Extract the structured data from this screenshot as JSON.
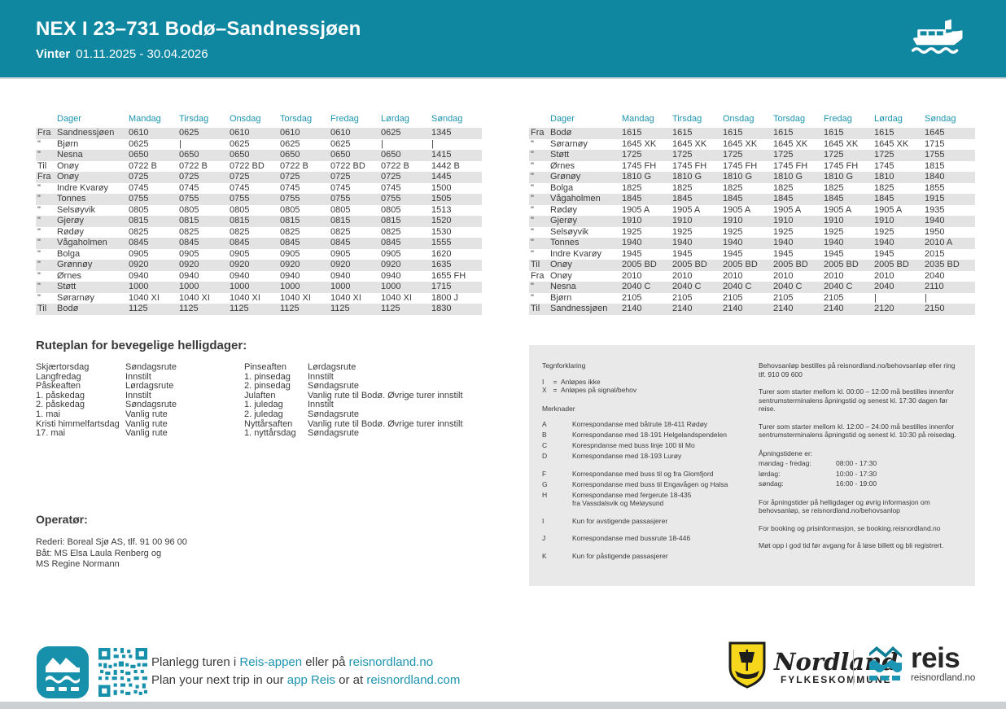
{
  "header": {
    "route_title": "NEX I 23–731 Bodø–Sandnessjøen",
    "season": "Vinter",
    "period": "01.11.2025 - 30.04.2026"
  },
  "tables": [
    {
      "columns": [
        "Dager",
        "Mandag",
        "Tirsdag",
        "Onsdag",
        "Torsdag",
        "Fredag",
        "Lørdag",
        "Søndag"
      ],
      "rows": [
        {
          "p": "Fra",
          "s": "Sandnessjøen",
          "t": [
            "0610",
            "0625",
            "0610",
            "0610",
            "0610",
            "0625",
            "1345"
          ]
        },
        {
          "p": "\"",
          "s": "Bjørn",
          "t": [
            "0625",
            "|",
            "0625",
            "0625",
            "0625",
            "|",
            "|"
          ]
        },
        {
          "p": "\"",
          "s": "Nesna",
          "t": [
            "0650",
            "0650",
            "0650",
            "0650",
            "0650",
            "0650",
            "1415"
          ]
        },
        {
          "p": "Til",
          "s": "Onøy",
          "t": [
            "0722 B",
            "0722 B",
            "0722 BD",
            "0722 B",
            "0722 BD",
            "0722 B",
            "1442 B"
          ]
        },
        {
          "p": "Fra",
          "s": "Onøy",
          "t": [
            "0725",
            "0725",
            "0725",
            "0725",
            "0725",
            "0725",
            "1445"
          ]
        },
        {
          "p": "\"",
          "s": "Indre Kvarøy",
          "t": [
            "0745",
            "0745",
            "0745",
            "0745",
            "0745",
            "0745",
            "1500"
          ]
        },
        {
          "p": "\"",
          "s": "Tonnes",
          "t": [
            "0755",
            "0755",
            "0755",
            "0755",
            "0755",
            "0755",
            "1505"
          ]
        },
        {
          "p": "\"",
          "s": "Selsøyvik",
          "t": [
            "0805",
            "0805",
            "0805",
            "0805",
            "0805",
            "0805",
            "1513"
          ]
        },
        {
          "p": "\"",
          "s": "Gjerøy",
          "t": [
            "0815",
            "0815",
            "0815",
            "0815",
            "0815",
            "0815",
            "1520"
          ]
        },
        {
          "p": "\"",
          "s": "Rødøy",
          "t": [
            "0825",
            "0825",
            "0825",
            "0825",
            "0825",
            "0825",
            "1530"
          ]
        },
        {
          "p": "\"",
          "s": "Vågaholmen",
          "t": [
            "0845",
            "0845",
            "0845",
            "0845",
            "0845",
            "0845",
            "1555"
          ]
        },
        {
          "p": "\"",
          "s": "Bolga",
          "t": [
            "0905",
            "0905",
            "0905",
            "0905",
            "0905",
            "0905",
            "1620"
          ]
        },
        {
          "p": "\"",
          "s": "Grønnøy",
          "t": [
            "0920",
            "0920",
            "0920",
            "0920",
            "0920",
            "0920",
            "1635"
          ]
        },
        {
          "p": "\"",
          "s": "Ørnes",
          "t": [
            "0940",
            "0940",
            "0940",
            "0940",
            "0940",
            "0940",
            "1655 FH"
          ]
        },
        {
          "p": "\"",
          "s": "Støtt",
          "t": [
            "1000",
            "1000",
            "1000",
            "1000",
            "1000",
            "1000",
            "1715"
          ]
        },
        {
          "p": "\"",
          "s": "Sørarnøy",
          "t": [
            "1040 XI",
            "1040 XI",
            "1040 XI",
            "1040 XI",
            "1040 XI",
            "1040 XI",
            "1800 J"
          ]
        },
        {
          "p": "Til",
          "s": "Bodø",
          "t": [
            "1125",
            "1125",
            "1125",
            "1125",
            "1125",
            "1125",
            "1830"
          ]
        }
      ]
    },
    {
      "columns": [
        "Dager",
        "Mandag",
        "Tirsdag",
        "Onsdag",
        "Torsdag",
        "Fredag",
        "Lørdag",
        "Søndag"
      ],
      "rows": [
        {
          "p": "Fra",
          "s": "Bodø",
          "t": [
            "1615",
            "1615",
            "1615",
            "1615",
            "1615",
            "1615",
            "1645"
          ]
        },
        {
          "p": "\"",
          "s": "Sørarnøy",
          "t": [
            "1645 XK",
            "1645 XK",
            "1645 XK",
            "1645 XK",
            "1645 XK",
            "1645 XK",
            "1715"
          ]
        },
        {
          "p": "\"",
          "s": "Støtt",
          "t": [
            "1725",
            "1725",
            "1725",
            "1725",
            "1725",
            "1725",
            "1755"
          ]
        },
        {
          "p": "\"",
          "s": "Ørnes",
          "t": [
            "1745 FH",
            "1745 FH",
            "1745 FH",
            "1745 FH",
            "1745 FH",
            "1745",
            "1815"
          ]
        },
        {
          "p": "\"",
          "s": "Grønøy",
          "t": [
            "1810 G",
            "1810 G",
            "1810 G",
            "1810 G",
            "1810 G",
            "1810",
            "1840"
          ]
        },
        {
          "p": "\"",
          "s": "Bolga",
          "t": [
            "1825",
            "1825",
            "1825",
            "1825",
            "1825",
            "1825",
            "1855"
          ]
        },
        {
          "p": "\"",
          "s": "Vågaholmen",
          "t": [
            "1845",
            "1845",
            "1845",
            "1845",
            "1845",
            "1845",
            "1915"
          ]
        },
        {
          "p": "\"",
          "s": "Rødøy",
          "t": [
            "1905 A",
            "1905 A",
            "1905 A",
            "1905 A",
            "1905 A",
            "1905 A",
            "1935"
          ]
        },
        {
          "p": "\"",
          "s": "Gjerøy",
          "t": [
            "1910",
            "1910",
            "1910",
            "1910",
            "1910",
            "1910",
            "1940"
          ]
        },
        {
          "p": "\"",
          "s": "Selsøyvik",
          "t": [
            "1925",
            "1925",
            "1925",
            "1925",
            "1925",
            "1925",
            "1950"
          ]
        },
        {
          "p": "\"",
          "s": "Tonnes",
          "t": [
            "1940",
            "1940",
            "1940",
            "1940",
            "1940",
            "1940",
            "2010 A"
          ]
        },
        {
          "p": "\"",
          "s": "Indre Kvarøy",
          "t": [
            "1945",
            "1945",
            "1945",
            "1945",
            "1945",
            "1945",
            "2015"
          ]
        },
        {
          "p": "Til",
          "s": "Onøy",
          "t": [
            "2005 BD",
            "2005 BD",
            "2005 BD",
            "2005 BD",
            "2005 BD",
            "2005 BD",
            "2035 BD"
          ]
        },
        {
          "p": "Fra",
          "s": "Onøy",
          "t": [
            "2010",
            "2010",
            "2010",
            "2010",
            "2010",
            "2010",
            "2040"
          ]
        },
        {
          "p": "\"",
          "s": "Nesna",
          "t": [
            "2040 C",
            "2040 C",
            "2040 C",
            "2040 C",
            "2040 C",
            "2040",
            "2110"
          ]
        },
        {
          "p": "\"",
          "s": "Bjørn",
          "t": [
            "2105",
            "2105",
            "2105",
            "2105",
            "2105",
            "|",
            "|"
          ]
        },
        {
          "p": "Til",
          "s": "Sandnessjøen",
          "t": [
            "2140",
            "2140",
            "2140",
            "2140",
            "2140",
            "2120",
            "2150"
          ]
        }
      ]
    }
  ],
  "holidays": {
    "title": "Ruteplan for bevegelige helligdager:",
    "items": [
      {
        "name": "Skjærtorsdag",
        "rule": "Søndagsrute"
      },
      {
        "name": "Langfredag",
        "rule": "Innstilt"
      },
      {
        "name": "Påskeaften",
        "rule": "Lørdagsrute"
      },
      {
        "name": "1. påskedag",
        "rule": "Innstilt"
      },
      {
        "name": "2. påskedag",
        "rule": "Søndagsrute"
      },
      {
        "name": "1. mai",
        "rule": "Vanlig rute"
      },
      {
        "name": "Kristi himmelfartsdag",
        "rule": "Vanlig rute"
      },
      {
        "name": "17. mai",
        "rule": "Vanlig rute"
      },
      {
        "name": "Pinseaften",
        "rule": "Lørdagsrute"
      },
      {
        "name": "1. pinsedag",
        "rule": "Innstilt"
      },
      {
        "name": "2. pinsedag",
        "rule": "Søndagsrute"
      },
      {
        "name": "Julaften",
        "rule": "Vanlig rute til Bodø. Øvrige turer innstilt"
      },
      {
        "name": "1. juledag",
        "rule": "Innstilt"
      },
      {
        "name": "2. juledag",
        "rule": "Søndagsrute"
      },
      {
        "name": "Nyttårsaften",
        "rule": "Vanlig rute til Bodø. Øvrige turer innstilt"
      },
      {
        "name": "1. nyttårsdag",
        "rule": "Søndagsrute"
      }
    ]
  },
  "legend": {
    "title": "Tegnforklaring",
    "symbols": [
      {
        "s": "I",
        "d": "Anløpes ikke"
      },
      {
        "s": "X",
        "d": "Anløpes på signal/behov"
      }
    ],
    "notes_title": "Merknader",
    "notes": [
      {
        "code": "A",
        "desc": "Korrespondanse med båtrute 18-411 Rødøy",
        "gap": false
      },
      {
        "code": "B",
        "desc": "Korrespondanse med 18-191 Helgelandspendelen",
        "gap": false
      },
      {
        "code": "C",
        "desc": "Korespndanse med buss linje 100 til Mo",
        "gap": false
      },
      {
        "code": "D",
        "desc": "Korrespondanse med 18-193 Lurøy",
        "gap": false
      },
      {
        "code": "F",
        "desc": "Korrespondanse med buss til og fra Glomfjord",
        "gap": true
      },
      {
        "code": "G",
        "desc": "Korrespondanse med buss til Engavågen og Halsa",
        "gap": false
      },
      {
        "code": "H",
        "desc": "Korrespondanse med fergerute 18-435\nfra Vassdalsvik og Meløysund",
        "gap": false
      },
      {
        "code": "I",
        "desc": "Kun for avstigende passasjerer",
        "gap": true
      },
      {
        "code": "J",
        "desc": "Korrespondanse med bussrute 18-446",
        "gap": true
      },
      {
        "code": "K",
        "desc": "Kun for påstigende passasjerer",
        "gap": true
      }
    ],
    "info_top": [
      "Behovsanløp bestilles på reisnordland.no/behovsanløp eller ring tlf. 910 09 600",
      "Turer som starter mellom kl. 00:00 – 12:00 må bestilles innenfor sentrumsterminalens åpningstid og senest kl. 17:30 dagen før reise.",
      "Turer som starter mellom kl. 12:00 – 24:00 må bestilles innenfor sentrumsterminalens åpningstid og senest kl. 10:30 på reisedag."
    ],
    "opening_hours": {
      "title": "Åpningstidene er:",
      "rows": [
        {
          "label": "mandag - fredag:",
          "value": "08:00 - 17:30"
        },
        {
          "label": "lørdag:",
          "value": "10:00 - 17:30"
        },
        {
          "label": "søndag:",
          "value": "16:00 - 19:00"
        }
      ]
    },
    "info_bottom": [
      "For åpningstider på helligdager og øvrig informasjon om behovsanløp, se reisnordland.no/behovsanlop",
      "For booking og prisinformasjon, se booking.reisnordland.no",
      "Møt opp i god tid før avgang for å løse billett og bli registrert."
    ]
  },
  "operator": {
    "title": "Operatør:",
    "lines": [
      "Rederi: Boreal Sjø AS, tlf. 91 00 96 00",
      "Båt: MS Elsa Laula Renberg og",
      "MS Regine Normann"
    ]
  },
  "footer": {
    "line_no": [
      {
        "text": "Planlegg turen i ",
        "teal": false
      },
      {
        "text": "Reis-appen",
        "teal": true
      },
      {
        "text": " eller på ",
        "teal": false
      },
      {
        "text": "reisnordland.no",
        "teal": true
      }
    ],
    "line_en": [
      {
        "text": "Plan your next trip in our ",
        "teal": false
      },
      {
        "text": "app Reis",
        "teal": true
      },
      {
        "text": " or at ",
        "teal": false
      },
      {
        "text": "reisnordland.com",
        "teal": true
      }
    ],
    "nordland_logo": {
      "name": "Nordland",
      "sub": "FYLKESKOMMUNE"
    },
    "reis_logo": {
      "name": "reis",
      "sub": "reisnordland.no"
    }
  },
  "colors": {
    "accent_teal": "#0f87a1",
    "link_teal": "#1d94ae",
    "row_stripe": "#e3e3e3",
    "info_box_bg": "#e9e9e9",
    "shield_yellow": "#f6d71c"
  }
}
